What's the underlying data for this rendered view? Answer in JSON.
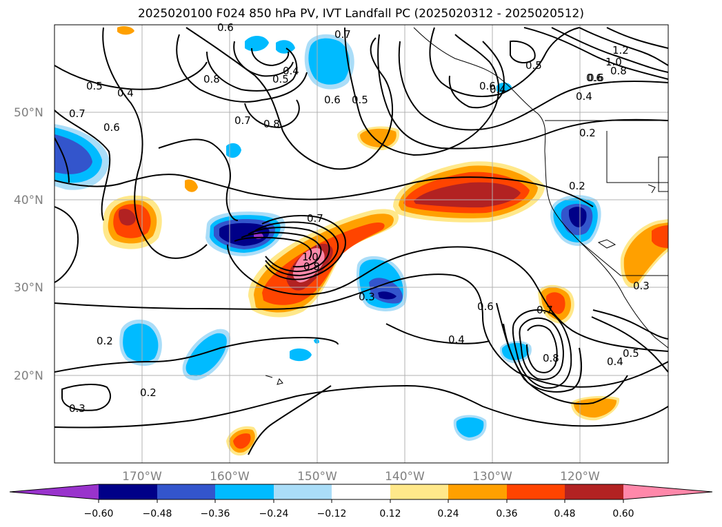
{
  "title": "2025020100 F024 850 hPa PV, IVT Landfall PC (2025020312 - 2025020512)",
  "map": {
    "lat_labels": [
      "50°N",
      "40°N",
      "30°N",
      "20°N"
    ],
    "lon_labels": [
      "170°W",
      "160°W",
      "150°W",
      "140°W",
      "130°W",
      "120°W"
    ],
    "grid": true,
    "projection": "PlateCarree"
  },
  "colorbar": {
    "tick_labels": [
      "−0.60",
      "−0.48",
      "−0.36",
      "−0.24",
      "−0.12",
      "0.12",
      "0.24",
      "0.36",
      "0.48",
      "0.60"
    ],
    "colors": {
      "under": "#9933cc",
      "c1": "#000088",
      "c2": "#3355cc",
      "c3": "#00bbff",
      "c4": "#aaddf8",
      "c5": "#ffffff",
      "c6": "#ffe88a",
      "c7": "#ffa000",
      "c8": "#ff4400",
      "c9": "#b22222",
      "over": "#ff88aa"
    }
  },
  "contour_labels": [
    "0.6",
    "0.7",
    "0.4",
    "0.5",
    "0.8",
    "0.5",
    "0.4",
    "0.7",
    "0.6",
    "0.8",
    "0.7",
    "0.6",
    "0.5",
    "0.6",
    "0.5",
    "0.6",
    "0.4",
    "0.2",
    "1.2",
    "1.0",
    "0.8",
    "0.6",
    "0.4",
    "0.2",
    "0.7",
    "1.0",
    "0.8",
    "0.3",
    "0.6",
    "0.7",
    "0.4",
    "0.8",
    "0.2",
    "0.2",
    "0.3",
    "0.4",
    "0.5",
    "0.3"
  ]
}
